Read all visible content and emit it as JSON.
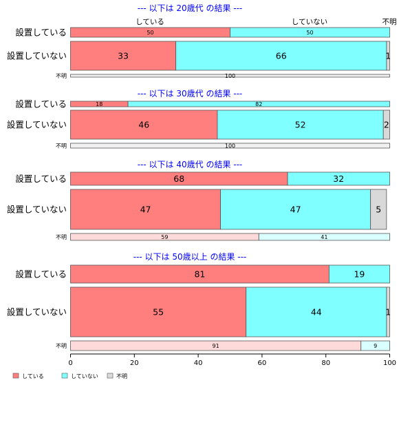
{
  "chart_data": {
    "type": "bar",
    "orientation": "horizontal",
    "stacked": true,
    "xlim": [
      0,
      100
    ],
    "x_ticks": [
      "0",
      "20",
      "40",
      "60",
      "80",
      "100"
    ],
    "header_labels": [
      "している",
      "していない",
      "不明"
    ],
    "legend": {
      "placement": "bottom-left",
      "items": [
        {
          "label": "している",
          "color": "#ff7f7f"
        },
        {
          "label": "していない",
          "color": "#7fffff"
        },
        {
          "label": "不明",
          "color": "#d9d9d9"
        }
      ]
    },
    "unknown_row_colors": [
      "#ffdada",
      "#daffff",
      "#f0f0f0"
    ],
    "panels": [
      {
        "title": "--- 以下は 20歳代 の結果 ---",
        "rows": [
          {
            "label": "設置している",
            "values": [
              50,
              50,
              0
            ]
          },
          {
            "label": "設置していない",
            "values": [
              33,
              66,
              1
            ]
          },
          {
            "label": "不明",
            "values": [
              0,
              0,
              100
            ],
            "value_labels": [
              "",
              "",
              "100"
            ]
          }
        ]
      },
      {
        "title": "--- 以下は 30歳代 の結果 ---",
        "rows": [
          {
            "label": "設置している",
            "values": [
              18,
              82,
              0
            ]
          },
          {
            "label": "設置していない",
            "values": [
              46,
              52,
              2
            ]
          },
          {
            "label": "不明",
            "values": [
              0,
              0,
              100
            ],
            "value_labels": [
              "",
              "",
              "100"
            ]
          }
        ]
      },
      {
        "title": "--- 以下は 40歳代 の結果 ---",
        "rows": [
          {
            "label": "設置している",
            "values": [
              68,
              32,
              0
            ]
          },
          {
            "label": "設置していない",
            "values": [
              47,
              47,
              5
            ]
          },
          {
            "label": "不明",
            "values": [
              59,
              41,
              0
            ]
          }
        ]
      },
      {
        "title": "--- 以下は 50歳以上 の結果 ---",
        "rows": [
          {
            "label": "設置している",
            "values": [
              81,
              19,
              0
            ]
          },
          {
            "label": "設置していない",
            "values": [
              55,
              44,
              1
            ]
          },
          {
            "label": "不明",
            "values": [
              91,
              9,
              0
            ]
          }
        ]
      }
    ]
  }
}
